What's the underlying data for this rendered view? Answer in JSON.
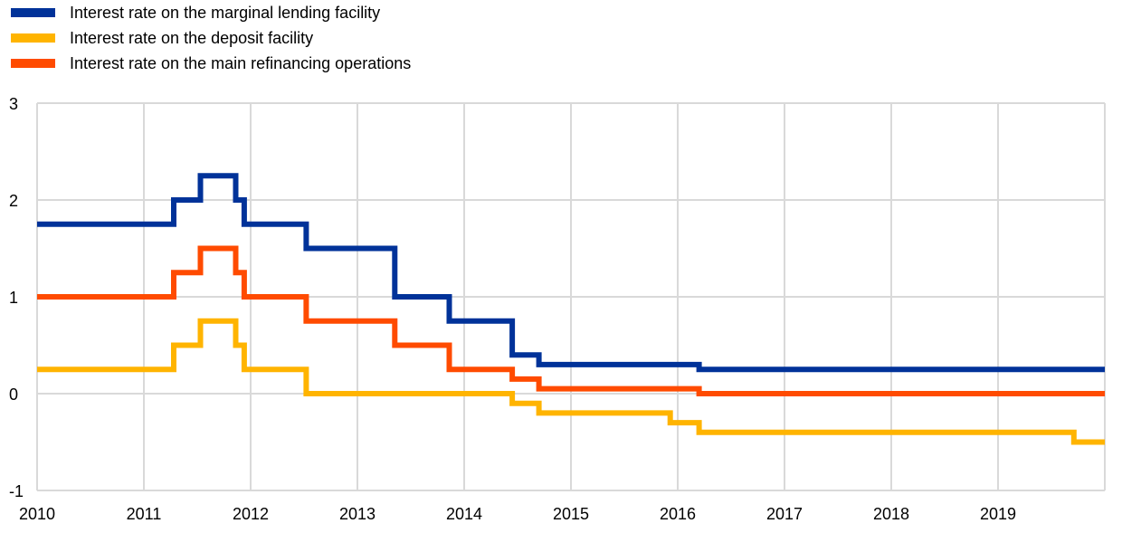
{
  "chart_data": {
    "type": "line",
    "step": true,
    "title": "",
    "xlabel": "",
    "ylabel": "",
    "xlim": [
      2010,
      2020
    ],
    "ylim": [
      -1,
      3
    ],
    "x_ticks": [
      2010,
      2011,
      2012,
      2013,
      2014,
      2015,
      2016,
      2017,
      2018,
      2019
    ],
    "x_tick_labels": [
      "2010",
      "2011",
      "2012",
      "2013",
      "2014",
      "2015",
      "2016",
      "2017",
      "2018",
      "2019"
    ],
    "y_ticks": [
      -1,
      0,
      1,
      2,
      3
    ],
    "y_tick_labels": [
      "-1",
      "0",
      "1",
      "2",
      "3"
    ],
    "grid": "vertical lines at each year and horizontal lines at each integer",
    "legend_position": "top-left, above plot",
    "series": [
      {
        "name": "Interest rate on the marginal lending facility",
        "color": "#003299",
        "x": [
          2010.0,
          2011.28,
          2011.53,
          2011.86,
          2011.94,
          2012.52,
          2013.35,
          2013.86,
          2014.45,
          2014.7,
          2016.2,
          2020.0
        ],
        "y": [
          1.75,
          2.0,
          2.25,
          2.0,
          1.75,
          1.5,
          1.0,
          0.75,
          0.4,
          0.3,
          0.25,
          0.25
        ]
      },
      {
        "name": "Interest rate on the deposit facility",
        "color": "#FFB400",
        "x": [
          2010.0,
          2011.28,
          2011.53,
          2011.86,
          2011.94,
          2012.52,
          2014.45,
          2014.7,
          2015.93,
          2016.2,
          2019.71,
          2020.0
        ],
        "y": [
          0.25,
          0.5,
          0.75,
          0.5,
          0.25,
          0.0,
          -0.1,
          -0.2,
          -0.3,
          -0.4,
          -0.5,
          -0.5
        ]
      },
      {
        "name": "Interest rate on the main refinancing operations",
        "color": "#FF4B00",
        "x": [
          2010.0,
          2011.28,
          2011.53,
          2011.86,
          2011.94,
          2012.52,
          2013.35,
          2013.86,
          2014.45,
          2014.7,
          2016.2,
          2020.0
        ],
        "y": [
          1.0,
          1.25,
          1.5,
          1.25,
          1.0,
          0.75,
          0.5,
          0.25,
          0.15,
          0.05,
          0.0,
          0.0
        ]
      }
    ]
  }
}
